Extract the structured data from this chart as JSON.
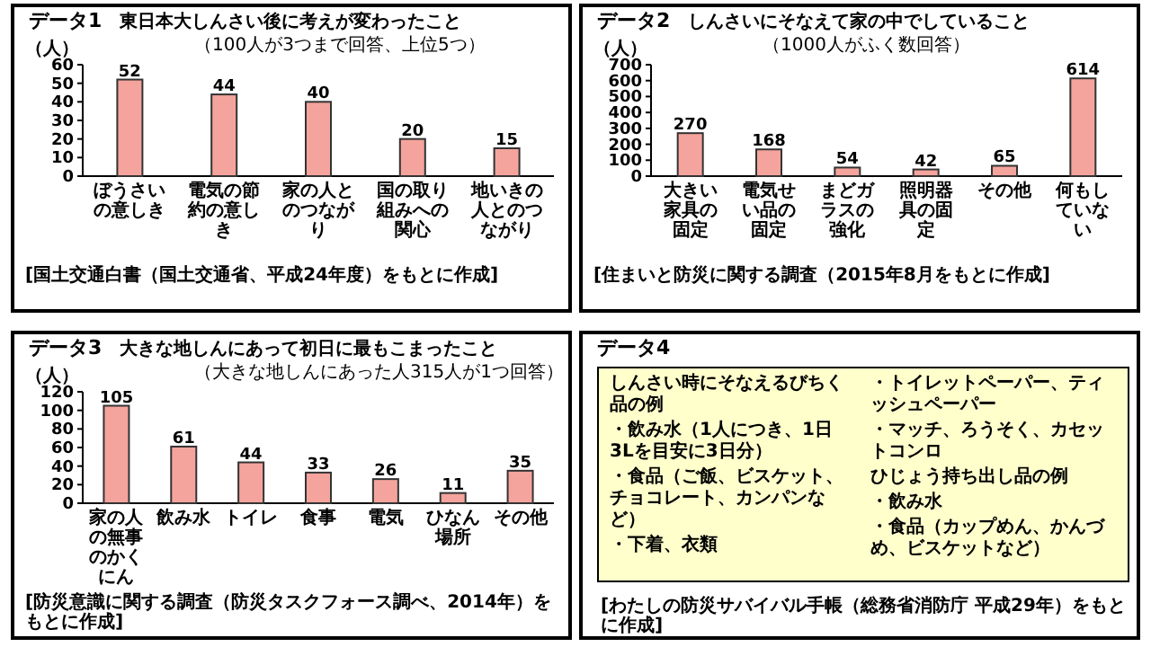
{
  "chart_data": [
    {
      "type": "bar",
      "title": "データ1",
      "subtitle": "東日本大しんさい後に考えが変わったこと",
      "ylabel": "（人）",
      "annotations": [
        "（100人が3つまで回答、上位5つ）",
        "[国土交通白書（国土交通省、平成24年度）をもとに作成]"
      ],
      "categories": [
        "ぼうさいの意しき",
        "電気の節約の意しき",
        "家の人とのつながり",
        "国の取り組みへの関心",
        "地いきの人とのつながり"
      ],
      "values": [
        52,
        44,
        40,
        20,
        15
      ],
      "color": "#f4a49c",
      "ylim": [
        0,
        60
      ],
      "yticks": [
        0,
        10,
        20,
        30,
        40,
        50,
        60
      ],
      "data_labels": true
    },
    {
      "type": "bar",
      "title": "データ2",
      "subtitle": "しんさいにそなえて家の中でしていること",
      "ylabel": "（人）",
      "annotations": [
        "（1000人がふく数回答）",
        "[住まいと防災に関する調査（2015年8月をもとに作成]"
      ],
      "categories": [
        "大きい家具の固定",
        "電気せい品の固定",
        "まどガラスの強化",
        "照明器具の固定",
        "その他",
        "何もしていない"
      ],
      "values": [
        270,
        168,
        54,
        42,
        65,
        614
      ],
      "color": "#f4a49c",
      "ylim": [
        0,
        700
      ],
      "yticks": [
        0,
        100,
        200,
        300,
        400,
        500,
        600,
        700
      ],
      "data_labels": true
    },
    {
      "type": "bar",
      "title": "データ3",
      "subtitle": "大きな地しんにあって初日に最もこまったこと",
      "ylabel": "（人）",
      "annotations": [
        "（大きな地しんにあった人315人が1つ回答）",
        "[防災意識に関する調査（防災タスクフォース調べ、2014年）をもとに作成]"
      ],
      "categories": [
        "家の人の無事のかくにん",
        "飲み水",
        "トイレ",
        "食事",
        "電気",
        "ひなん場所",
        "その他"
      ],
      "values": [
        105,
        61,
        44,
        33,
        26,
        11,
        35
      ],
      "color": "#f4a49c",
      "ylim": [
        0,
        120
      ],
      "yticks": [
        0,
        20,
        40,
        60,
        80,
        100,
        120
      ],
      "data_labels": true
    },
    {
      "type": "other",
      "title": "データ4",
      "annotations": [
        "しんさい時にそなえるびちく品の例",
        "・飲み水（1人につき、1日3Lを目安に3日分）",
        "・食品（ご飯、ビスケット、チョコレート、カンパンなど）",
        "・下着、衣類",
        "・トイレットペーパー、ティッシュペーパー",
        "・マッチ、ろうそく、カセットコンロ",
        "ひじょう持ち出し品の例",
        "・飲み水",
        "・食品（カップめん、かんづめ、ビスケットなど）",
        "[わたしの防災サバイバル手帳（総務省消防庁 平成29年）をもとに作成]"
      ]
    }
  ]
}
